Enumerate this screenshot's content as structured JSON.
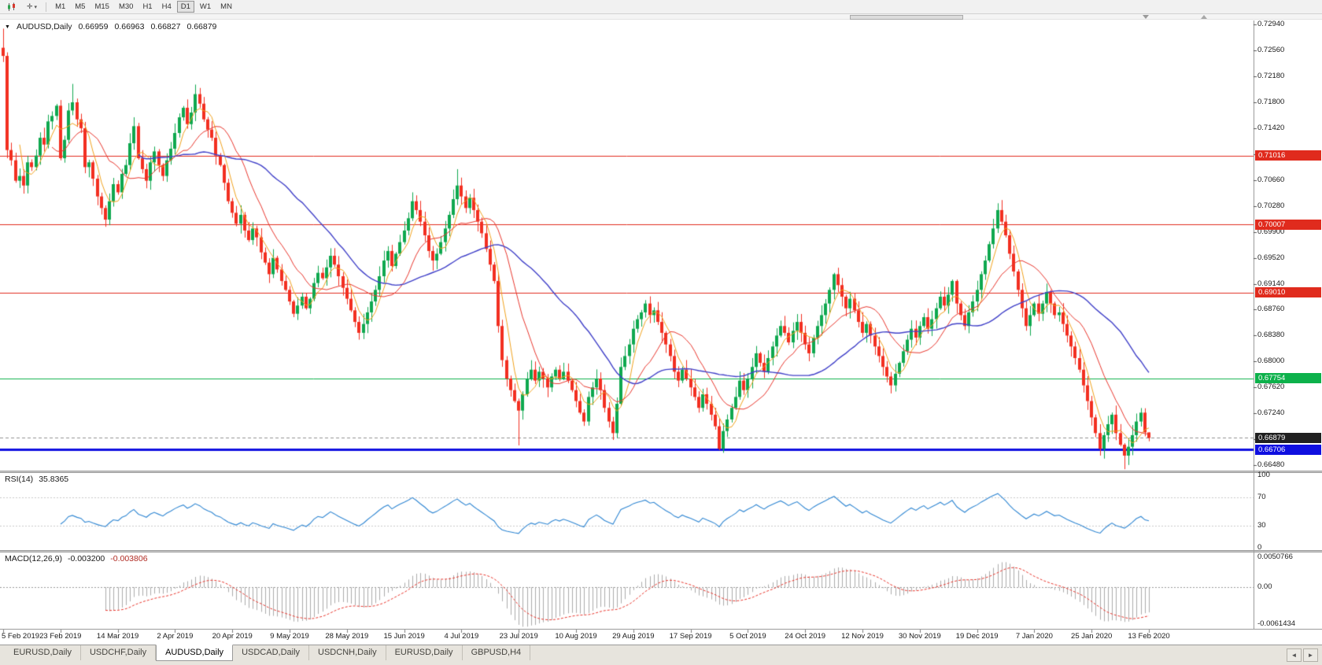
{
  "toolbar": {
    "periods": [
      "M1",
      "M5",
      "M15",
      "M30",
      "H1",
      "H4",
      "D1",
      "W1",
      "MN"
    ],
    "active_period": "D1",
    "chart_icon": "candlestick-chart-icon",
    "cursor_icon": "crosshair-icon"
  },
  "window": {
    "symbol_label": "AUDUSD,Daily",
    "open": "0.66959",
    "high": "0.66963",
    "low": "0.66827",
    "close": "0.66879"
  },
  "price_axis": {
    "max": "0.73000",
    "min": "0.66400",
    "ticks": [
      "0.72940",
      "0.72560",
      "0.72180",
      "0.71800",
      "0.71420",
      "0.71040",
      "0.70660",
      "0.70280",
      "0.69900",
      "0.69520",
      "0.69140",
      "0.68760",
      "0.68380",
      "0.68000",
      "0.67620",
      "0.67240",
      "0.66860",
      "0.66480"
    ]
  },
  "levels": [
    {
      "price": "0.71016",
      "color": "#e02b1d",
      "width": 1
    },
    {
      "price": "0.70007",
      "color": "#e02b1d",
      "width": 1
    },
    {
      "price": "0.69010",
      "color": "#e02b1d",
      "width": 1
    },
    {
      "price": "0.67754",
      "color": "#0db14b",
      "width": 1
    },
    {
      "price": "0.66706",
      "color": "#0f0fe0",
      "width": 3
    }
  ],
  "bid": {
    "price": "0.66879",
    "color": "#202020"
  },
  "chart_data": {
    "type": "candlestick",
    "symbol": "AUDUSD",
    "timeframe": "Daily",
    "up_color": "#0fa84f",
    "down_color": "#f22f21",
    "first_open": 0.726,
    "closes": [
      0.7248,
      0.711,
      0.7095,
      0.7065,
      0.7072,
      0.7058,
      0.7092,
      0.7085,
      0.7102,
      0.7128,
      0.7118,
      0.7152,
      0.716,
      0.7175,
      0.7098,
      0.7125,
      0.7168,
      0.718,
      0.7155,
      0.7142,
      0.7085,
      0.7092,
      0.7068,
      0.7042,
      0.7025,
      0.7008,
      0.7035,
      0.706,
      0.7048,
      0.7075,
      0.7088,
      0.712,
      0.7145,
      0.7098,
      0.7082,
      0.7065,
      0.7092,
      0.7108,
      0.7088,
      0.7072,
      0.7095,
      0.7112,
      0.7135,
      0.7158,
      0.7172,
      0.7148,
      0.7165,
      0.7192,
      0.7178,
      0.7155,
      0.714,
      0.7128,
      0.7102,
      0.7088,
      0.7062,
      0.7035,
      0.7018,
      0.7002,
      0.7015,
      0.6992,
      0.6978,
      0.6995,
      0.6982,
      0.696,
      0.6945,
      0.6928,
      0.6952,
      0.6935,
      0.6918,
      0.6905,
      0.6888,
      0.687,
      0.6882,
      0.6895,
      0.6878,
      0.6892,
      0.6915,
      0.693,
      0.6922,
      0.6938,
      0.6955,
      0.6942,
      0.6925,
      0.6908,
      0.6892,
      0.6875,
      0.6858,
      0.6842,
      0.6855,
      0.6872,
      0.6888,
      0.6905,
      0.6925,
      0.6948,
      0.6962,
      0.694,
      0.6958,
      0.6975,
      0.6992,
      0.701,
      0.7035,
      0.7022,
      0.7005,
      0.6985,
      0.6962,
      0.6948,
      0.6958,
      0.6975,
      0.6995,
      0.7015,
      0.7038,
      0.7058,
      0.7042,
      0.7025,
      0.704,
      0.7022,
      0.7005,
      0.6988,
      0.6965,
      0.6942,
      0.6918,
      0.6852,
      0.6802,
      0.6775,
      0.6758,
      0.6742,
      0.6728,
      0.6752,
      0.6775,
      0.6788,
      0.6772,
      0.6785,
      0.6775,
      0.6762,
      0.6778,
      0.6788,
      0.6775,
      0.6785,
      0.6772,
      0.6758,
      0.6742,
      0.6725,
      0.6712,
      0.6748,
      0.6762,
      0.6775,
      0.6758,
      0.6732,
      0.6712,
      0.6695,
      0.6738,
      0.6792,
      0.6808,
      0.6825,
      0.6848,
      0.6862,
      0.6872,
      0.6885,
      0.6868,
      0.6875,
      0.6858,
      0.6842,
      0.6825,
      0.6808,
      0.6785,
      0.6772,
      0.6788,
      0.6775,
      0.6762,
      0.6748,
      0.6732,
      0.6752,
      0.6738,
      0.6722,
      0.6705,
      0.6672,
      0.6698,
      0.6715,
      0.6732,
      0.6748,
      0.6772,
      0.6758,
      0.6775,
      0.6792,
      0.6812,
      0.6798,
      0.6785,
      0.6805,
      0.6822,
      0.6838,
      0.6852,
      0.6842,
      0.6828,
      0.6845,
      0.6858,
      0.6842,
      0.6825,
      0.6812,
      0.6835,
      0.6852,
      0.6868,
      0.6885,
      0.6905,
      0.6928,
      0.6912,
      0.6895,
      0.6878,
      0.6892,
      0.6875,
      0.6858,
      0.6842,
      0.6855,
      0.6838,
      0.6822,
      0.6808,
      0.6792,
      0.6778,
      0.6765,
      0.6782,
      0.6798,
      0.6815,
      0.6832,
      0.6848,
      0.6835,
      0.6852,
      0.6865,
      0.6848,
      0.6862,
      0.6878,
      0.6895,
      0.6882,
      0.6898,
      0.6918,
      0.6885,
      0.6868,
      0.6852,
      0.6872,
      0.6888,
      0.6905,
      0.6928,
      0.6948,
      0.6972,
      0.6995,
      0.7022,
      0.7005,
      0.6985,
      0.6958,
      0.6932,
      0.6905,
      0.6878,
      0.6852,
      0.6868,
      0.6885,
      0.687,
      0.6885,
      0.6902,
      0.6885,
      0.6868,
      0.6872,
      0.6855,
      0.6838,
      0.6822,
      0.6805,
      0.6788,
      0.6765,
      0.6742,
      0.6718,
      0.6695,
      0.6672,
      0.6692,
      0.6708,
      0.6722,
      0.6695,
      0.6678,
      0.6662,
      0.6675,
      0.6692,
      0.6712,
      0.6725,
      0.6696,
      0.6688
    ],
    "extremes": {
      "0": {
        "h": 0.7288
      },
      "17": {
        "h": 0.7207
      },
      "47": {
        "h": 0.7206
      },
      "71": {
        "l": 0.6865
      },
      "87": {
        "l": 0.6832
      },
      "100": {
        "h": 0.7048
      },
      "111": {
        "h": 0.7082
      },
      "126": {
        "l": 0.6677
      },
      "149": {
        "l": 0.6685
      },
      "175": {
        "l": 0.667
      },
      "203": {
        "h": 0.693
      },
      "243": {
        "h": 0.7032
      },
      "268": {
        "l": 0.6662
      },
      "274": {
        "l": 0.6642
      },
      "280": {
        "h": 0.6696,
        "l": 0.6683
      }
    },
    "ma": [
      {
        "period": 5,
        "color": "#f0a11c"
      },
      {
        "period": 13,
        "color": "#e8362d"
      },
      {
        "period": 34,
        "color": "#4040c8"
      }
    ]
  },
  "rsi": {
    "name": "RSI(14)",
    "value": "35.8365",
    "period": 14,
    "color": "#2f86d2",
    "levels": [
      "100",
      "70",
      "30",
      "0"
    ],
    "level_lines": [
      70,
      30
    ]
  },
  "macd": {
    "name": "MACD(12,26,9)",
    "value_main": "-0.003200",
    "value_signal": "-0.003806",
    "fast": 12,
    "slow": 26,
    "signal": 9,
    "hist_color": "#ababab",
    "signal_color": "#e8362d",
    "axis": [
      "0.0050766",
      "0.00",
      "-0.0061434"
    ]
  },
  "date_axis": {
    "labels": [
      "5 Feb 2019",
      "23 Feb 2019",
      "14 Mar 2019",
      "2 Apr 2019",
      "20 Apr 2019",
      "9 May 2019",
      "28 May 2019",
      "15 Jun 2019",
      "4 Jul 2019",
      "23 Jul 2019",
      "10 Aug 2019",
      "29 Aug 2019",
      "17 Sep 2019",
      "5 Oct 2019",
      "24 Oct 2019",
      "12 Nov 2019",
      "30 Nov 2019",
      "19 Dec 2019",
      "7 Jan 2020",
      "25 Jan 2020",
      "13 Feb 2020"
    ]
  },
  "tabs": {
    "items": [
      "EURUSD,Daily",
      "USDCHF,Daily",
      "AUDUSD,Daily",
      "USDCAD,Daily",
      "USDCNH,Daily",
      "EURUSD,Daily",
      "GBPUSD,H4"
    ],
    "active_index": 2
  },
  "scroll": {
    "left_arrow": "◄",
    "right_arrow": "►"
  }
}
